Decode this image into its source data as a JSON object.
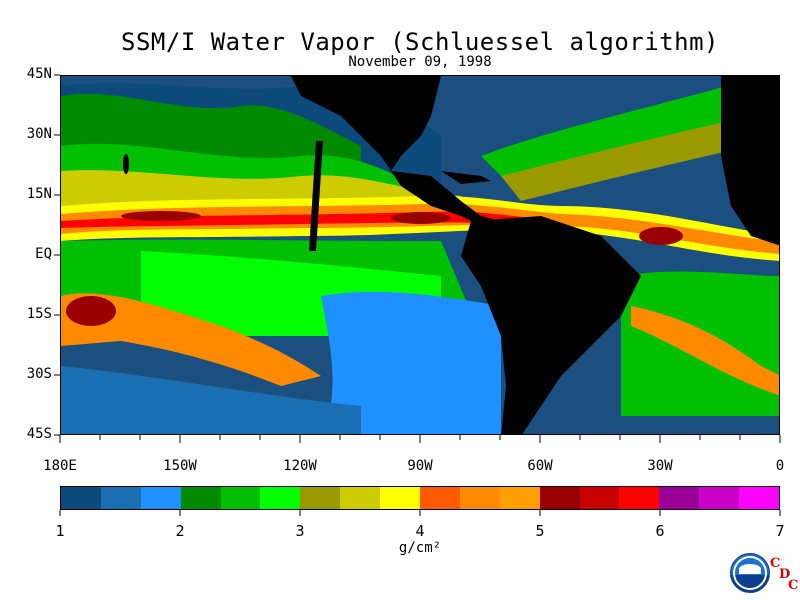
{
  "header": {
    "title": "SSM/I Water Vapor (Schluessel algorithm)",
    "date": "November 09, 1998"
  },
  "map": {
    "lat_labels": [
      "45N",
      "30N",
      "15N",
      "EQ",
      "15S",
      "30S",
      "45S"
    ],
    "lon_labels": [
      "180E",
      "150W",
      "120W",
      "90W",
      "60W",
      "30W",
      "0"
    ],
    "land_color": "#000000",
    "field_description_colors": [
      "#1a4f7f"
    ]
  },
  "colorbar": {
    "colors": [
      "#0b4a7a",
      "#1a6fb3",
      "#1e90ff",
      "#008a00",
      "#00c000",
      "#00ff00",
      "#9a9a00",
      "#cccc00",
      "#ffff00",
      "#ff5a00",
      "#ff8a00",
      "#ffa000",
      "#9a0000",
      "#c80000",
      "#ff0000",
      "#9a0099",
      "#c800c8",
      "#ff00ff"
    ],
    "tick_labels": [
      "1",
      "2",
      "3",
      "4",
      "5",
      "6",
      "7"
    ],
    "units": "g/cm²"
  },
  "logo": {
    "noaa_text": "NOAA",
    "cdc_letters": [
      "C",
      "D",
      "C"
    ]
  }
}
